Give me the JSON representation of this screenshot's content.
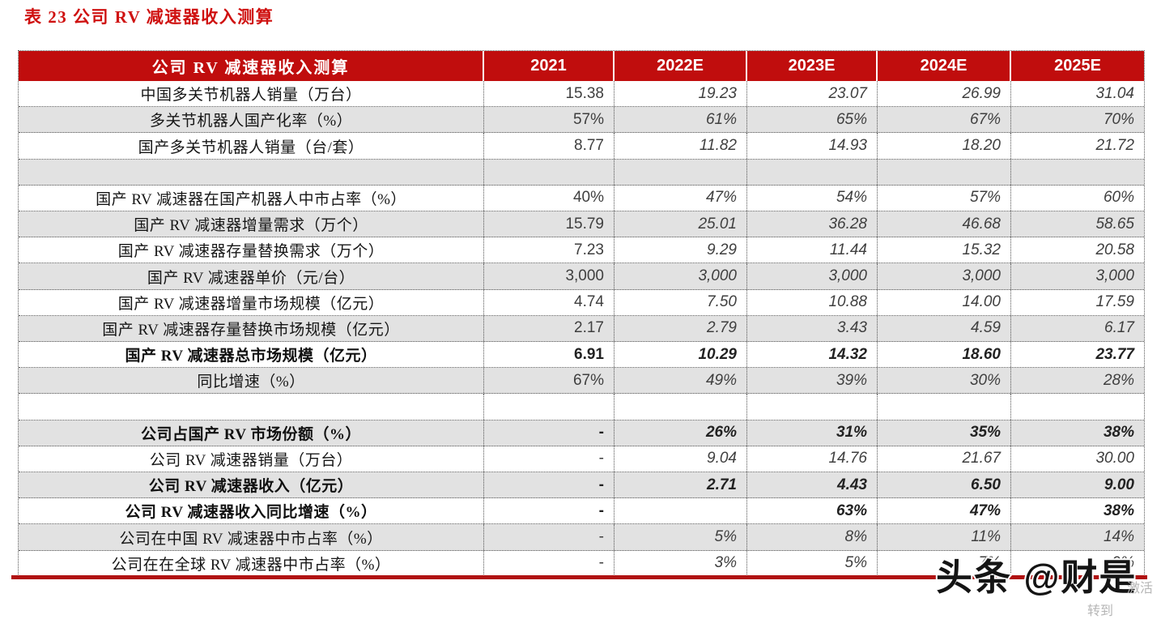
{
  "title": "表 23 公司 RV 减速器收入测算",
  "colors": {
    "header_red": "#c00d0d",
    "shaded_row_gray": "#e2e2e2",
    "bottom_rule_red": "#b01212",
    "title_red": "#cf1110"
  },
  "table": {
    "header": [
      "公司 RV 减速器收入测算",
      "2021",
      "2022E",
      "2023E",
      "2024E",
      "2025E"
    ],
    "rows": [
      {
        "label": "中国多关节机器人销量（万台）",
        "values": [
          "15.38",
          "19.23",
          "23.07",
          "26.99",
          "31.04"
        ],
        "shaded": false,
        "bold": false
      },
      {
        "label": "多关节机器人国产化率（%）",
        "values": [
          "57%",
          "61%",
          "65%",
          "67%",
          "70%"
        ],
        "shaded": true,
        "bold": false
      },
      {
        "label": "国产多关节机器人销量（台/套）",
        "values": [
          "8.77",
          "11.82",
          "14.93",
          "18.20",
          "21.72"
        ],
        "shaded": false,
        "bold": false
      },
      {
        "label": "",
        "values": [
          "",
          "",
          "",
          "",
          ""
        ],
        "shaded": true,
        "bold": false
      },
      {
        "label": "国产 RV 减速器在国产机器人中市占率（%）",
        "values": [
          "40%",
          "47%",
          "54%",
          "57%",
          "60%"
        ],
        "shaded": false,
        "bold": false
      },
      {
        "label": "国产 RV 减速器增量需求（万个）",
        "values": [
          "15.79",
          "25.01",
          "36.28",
          "46.68",
          "58.65"
        ],
        "shaded": true,
        "bold": false
      },
      {
        "label": "国产 RV 减速器存量替换需求（万个）",
        "values": [
          "7.23",
          "9.29",
          "11.44",
          "15.32",
          "20.58"
        ],
        "shaded": false,
        "bold": false
      },
      {
        "label": "国产 RV 减速器单价（元/台）",
        "values": [
          "3,000",
          "3,000",
          "3,000",
          "3,000",
          "3,000"
        ],
        "shaded": true,
        "bold": false
      },
      {
        "label": "国产 RV 减速器增量市场规模（亿元）",
        "values": [
          "4.74",
          "7.50",
          "10.88",
          "14.00",
          "17.59"
        ],
        "shaded": false,
        "bold": false
      },
      {
        "label": "国产 RV 减速器存量替换市场规模（亿元）",
        "values": [
          "2.17",
          "2.79",
          "3.43",
          "4.59",
          "6.17"
        ],
        "shaded": true,
        "bold": false
      },
      {
        "label": "国产 RV 减速器总市场规模（亿元）",
        "values": [
          "6.91",
          "10.29",
          "14.32",
          "18.60",
          "23.77"
        ],
        "shaded": false,
        "bold": true
      },
      {
        "label": "同比增速（%）",
        "values": [
          "67%",
          "49%",
          "39%",
          "30%",
          "28%"
        ],
        "shaded": true,
        "bold": false
      },
      {
        "label": "",
        "values": [
          "",
          "",
          "",
          "",
          ""
        ],
        "shaded": false,
        "bold": false
      },
      {
        "label": "公司占国产 RV 市场份额（%）",
        "values": [
          "-",
          "26%",
          "31%",
          "35%",
          "38%"
        ],
        "shaded": true,
        "bold": true
      },
      {
        "label": "公司 RV 减速器销量（万台）",
        "values": [
          "-",
          "9.04",
          "14.76",
          "21.67",
          "30.00"
        ],
        "shaded": false,
        "bold": false
      },
      {
        "label": "公司 RV 减速器收入（亿元）",
        "values": [
          "-",
          "2.71",
          "4.43",
          "6.50",
          "9.00"
        ],
        "shaded": true,
        "bold": true
      },
      {
        "label": "公司 RV 减速器收入同比增速（%）",
        "values": [
          "-",
          "",
          "63%",
          "47%",
          "38%"
        ],
        "shaded": false,
        "bold": true
      },
      {
        "label": "公司在中国 RV 减速器中市占率（%）",
        "values": [
          "-",
          "5%",
          "8%",
          "11%",
          "14%"
        ],
        "shaded": true,
        "bold": false
      },
      {
        "label": "公司在在全球 RV 减速器中市占率（%）",
        "values": [
          "-",
          "3%",
          "5%",
          "7%",
          "9%"
        ],
        "shaded": false,
        "bold": false
      }
    ]
  },
  "watermark": {
    "text": "头条 @财是"
  },
  "activation": {
    "line1": "激活",
    "line2": "转到"
  }
}
